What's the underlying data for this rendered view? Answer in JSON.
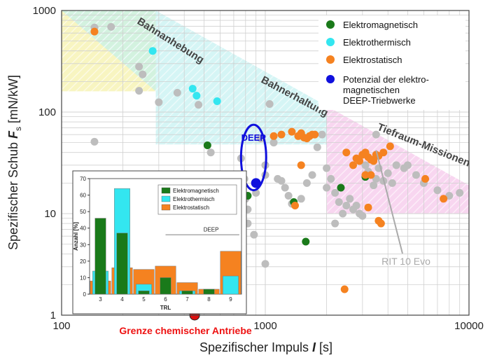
{
  "chart_data": {
    "type": "scatter",
    "x_scale": "log",
    "y_scale": "log",
    "xlim": [
      100,
      10000
    ],
    "ylim": [
      1,
      1000
    ],
    "xlabel": "Spezifischer Impuls",
    "xlabel_symbol": "I",
    "xlabel_unit": "[s]",
    "ylabel": "Spezifischer Schub",
    "ylabel_symbol": "F",
    "ylabel_sub": "s",
    "ylabel_unit": "[mN/kW]",
    "x_ticks": [
      "100",
      "1000",
      "10000"
    ],
    "y_ticks": [
      "1",
      "10",
      "100",
      "1000"
    ],
    "grid": true,
    "legend_position": "top-right",
    "legend": [
      {
        "label": "Elektromagnetisch",
        "color": "#1a7a1a"
      },
      {
        "label": "Elektrothermisch",
        "color": "#33e6f0"
      },
      {
        "label": "Elektrostatisch",
        "color": "#f58220"
      },
      {
        "label": "Potenzial der elektro-",
        "label2": "magnetischen",
        "label3": "DEEP-Triebwerke",
        "color": "#1010dd"
      }
    ],
    "regions": [
      {
        "label": "Bahnanhebung",
        "color": "#f5f0a0",
        "x": [
          100,
          270
        ],
        "y": [
          100,
          1000
        ]
      },
      {
        "label": "Bahnerhaltung",
        "color": "#bff0f0",
        "x": [
          270,
          2000
        ],
        "y": [
          45,
          400
        ]
      },
      {
        "label": "Tiefraum-Missionen",
        "color": "#f5c0e8",
        "x": [
          2000,
          10000
        ],
        "y": [
          10,
          70
        ]
      }
    ],
    "annotations": {
      "deep": "DEEP",
      "rit": "RIT 10 Evo",
      "chem_limit": "Grenze chemischer Antriebe"
    },
    "chem_limit_point": {
      "x": 450,
      "y": 1
    },
    "deep_point": {
      "x": 900,
      "y": 20
    },
    "deep_ellipse": {
      "x": 880,
      "y": 35,
      "x_range": [
        760,
        1010
      ],
      "y_range": [
        17,
        75
      ]
    },
    "rit_point": {
      "x": 3500,
      "y": 42
    },
    "series": [
      {
        "name": "Elektromagnetisch",
        "color": "#1a7a1a",
        "points": [
          [
            520,
            47
          ],
          [
            820,
            15
          ],
          [
            1380,
            13
          ],
          [
            1580,
            5.3
          ],
          [
            2350,
            18
          ],
          [
            3100,
            23
          ]
        ]
      },
      {
        "name": "Elektrothermisch",
        "color": "#33e6f0",
        "points": [
          [
            280,
            400
          ],
          [
            440,
            170
          ],
          [
            460,
            145
          ],
          [
            580,
            128
          ]
        ]
      },
      {
        "name": "Elektrostatisch",
        "color": "#f58220",
        "points": [
          [
            145,
            620
          ],
          [
            1100,
            58
          ],
          [
            1200,
            60
          ],
          [
            1350,
            64
          ],
          [
            1450,
            58
          ],
          [
            1500,
            62
          ],
          [
            1550,
            56
          ],
          [
            1600,
            55
          ],
          [
            1650,
            58
          ],
          [
            1700,
            60
          ],
          [
            1750,
            60
          ],
          [
            1500,
            30
          ],
          [
            1400,
            12
          ],
          [
            2500,
            40
          ],
          [
            2700,
            30
          ],
          [
            2800,
            35
          ],
          [
            2900,
            33
          ],
          [
            3000,
            38
          ],
          [
            3100,
            40
          ],
          [
            3200,
            36
          ],
          [
            3300,
            34
          ],
          [
            3400,
            33
          ],
          [
            3500,
            38
          ],
          [
            3600,
            37
          ],
          [
            3800,
            40
          ],
          [
            4100,
            46
          ],
          [
            3100,
            24
          ],
          [
            3300,
            24
          ],
          [
            3200,
            11.5
          ],
          [
            3600,
            8.5
          ],
          [
            3700,
            8
          ],
          [
            6100,
            22
          ],
          [
            7500,
            14
          ],
          [
            2450,
            1.8
          ]
        ]
      },
      {
        "name": "Sonstige",
        "color": "#bdbdbd",
        "points": [
          [
            145,
            680
          ],
          [
            175,
            690
          ],
          [
            240,
            280
          ],
          [
            250,
            235
          ],
          [
            240,
            162
          ],
          [
            300,
            125
          ],
          [
            370,
            155
          ],
          [
            470,
            118
          ],
          [
            540,
            40
          ],
          [
            145,
            51
          ],
          [
            760,
            35
          ],
          [
            790,
            22
          ],
          [
            800,
            14
          ],
          [
            820,
            11
          ],
          [
            820,
            8
          ],
          [
            880,
            6.2
          ],
          [
            900,
            16
          ],
          [
            950,
            55
          ],
          [
            1000,
            30
          ],
          [
            1000,
            24
          ],
          [
            1000,
            3.2
          ],
          [
            1050,
            120
          ],
          [
            1100,
            50
          ],
          [
            1150,
            22
          ],
          [
            1200,
            21
          ],
          [
            1250,
            18
          ],
          [
            1300,
            15
          ],
          [
            1350,
            12.5
          ],
          [
            1500,
            14
          ],
          [
            1600,
            20
          ],
          [
            1700,
            24
          ],
          [
            1800,
            45
          ],
          [
            1900,
            60
          ],
          [
            2000,
            28
          ],
          [
            2100,
            22
          ],
          [
            2200,
            8
          ],
          [
            2300,
            13
          ],
          [
            2400,
            10
          ],
          [
            2500,
            12
          ],
          [
            2600,
            14
          ],
          [
            2700,
            11
          ],
          [
            2800,
            12
          ],
          [
            2900,
            10
          ],
          [
            3000,
            9.5
          ],
          [
            3100,
            30
          ],
          [
            3200,
            26
          ],
          [
            3400,
            19
          ],
          [
            3500,
            22
          ],
          [
            3600,
            28
          ],
          [
            3800,
            21
          ],
          [
            4000,
            25
          ],
          [
            4200,
            20
          ],
          [
            4400,
            30
          ],
          [
            4800,
            28
          ],
          [
            5000,
            30
          ],
          [
            5500,
            24
          ],
          [
            6000,
            20
          ],
          [
            7000,
            17
          ],
          [
            8000,
            15
          ],
          [
            9000,
            16
          ],
          [
            3500,
            60
          ],
          [
            2000,
            18
          ],
          [
            2200,
            16
          ]
        ]
      }
    ],
    "inset": {
      "type": "bar",
      "ylabel": "Anzahl [%]",
      "xlabel": "TRL",
      "annotation": "DEEP",
      "ylim": [
        0,
        70
      ],
      "y_ticks": [
        "0",
        "10",
        "20",
        "30",
        "40",
        "50",
        "60",
        "70"
      ],
      "categories": [
        "3",
        "4",
        "5",
        "6",
        "7",
        "8",
        "9"
      ],
      "series": [
        {
          "name": "Elektrostatisch",
          "color": "#f58220",
          "values": [
            8,
            16,
            15,
            17,
            7,
            3,
            26
          ]
        },
        {
          "name": "Elektrothermisch",
          "color": "#33e6f0",
          "values": [
            14,
            64,
            6,
            0,
            2,
            0,
            11
          ]
        },
        {
          "name": "Elektromagnetisch",
          "color": "#1a7a1a",
          "values": [
            46,
            37,
            2,
            10,
            2,
            3,
            0
          ]
        }
      ],
      "legend": [
        "Elektromagnetisch",
        "Elektrothermisch",
        "Elektrostatisch"
      ]
    }
  }
}
